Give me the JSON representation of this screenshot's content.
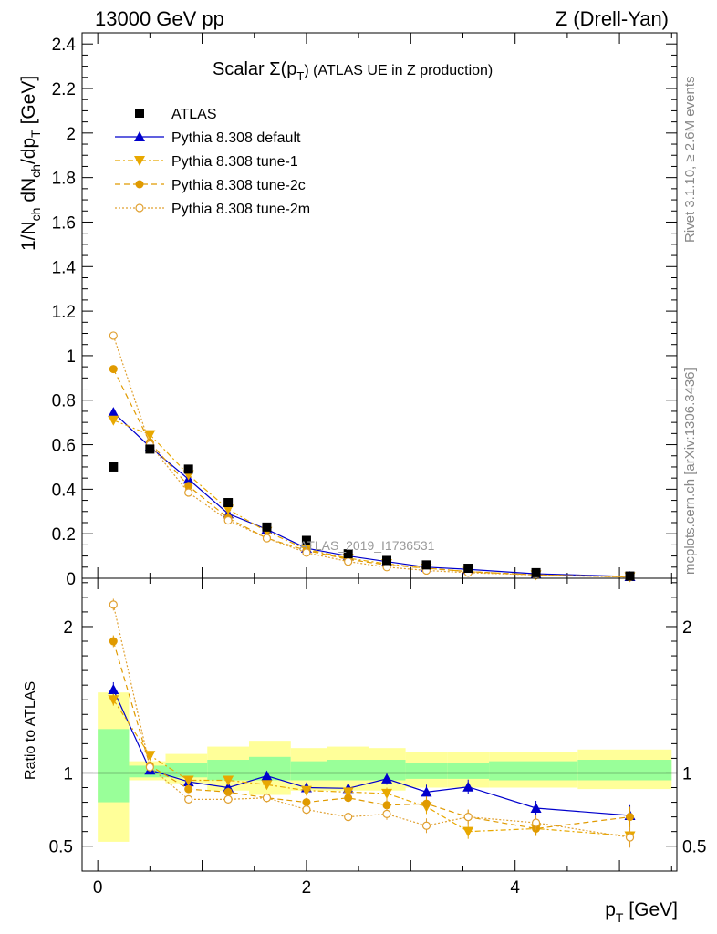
{
  "header": {
    "left": "13000 GeV pp",
    "right": "Z (Drell-Yan)"
  },
  "side_text": {
    "top": "Rivet 3.1.10, ≥ 2.6M events",
    "bottom": "mcplots.cern.ch [arXiv:1306.3436]"
  },
  "chart_data": {
    "type": "line",
    "title": "Scalar Σ(pT) (ATLAS UE in Z production)",
    "title_parts": {
      "prefix": "Scalar Σ(p",
      "sub": "T",
      "suffix": ") (ATLAS UE in Z production)"
    },
    "watermark": "ATLAS_2019_I1736531",
    "main": {
      "ylabel": "1/Nch dNch/dpT [GeV]",
      "ylabel_parts": [
        "1/N",
        "ch",
        " dN",
        "ch",
        "/dp",
        "T",
        " [GeV]"
      ],
      "ylim": [
        0,
        2.45
      ],
      "yticks": [
        0,
        0.2,
        0.4,
        0.6,
        0.8,
        1,
        1.2,
        1.4,
        1.6,
        1.8,
        2,
        2.2,
        2.4
      ],
      "ytick_labels": [
        "0",
        "0.2",
        "0.4",
        "0.6",
        "0.8",
        "1",
        "1.2",
        "1.4",
        "1.6",
        "1.8",
        "2",
        "2.2",
        "2.4"
      ]
    },
    "ratio": {
      "ylabel": "Ratio to ATLAS",
      "ylim": [
        0.33,
        2.33
      ],
      "yticks": [
        0.5,
        1,
        2
      ],
      "ytick_labels": [
        "0.5",
        "1",
        "2"
      ],
      "bands": [
        {
          "x0": 0.0,
          "x1": 0.3,
          "inner": [
            0.8,
            1.3
          ],
          "outer": [
            0.53,
            1.55
          ]
        },
        {
          "x0": 0.3,
          "x1": 0.65,
          "inner": [
            0.97,
            1.05
          ],
          "outer": [
            0.95,
            1.08
          ]
        },
        {
          "x0": 0.65,
          "x1": 1.05,
          "inner": [
            0.97,
            1.07
          ],
          "outer": [
            0.93,
            1.13
          ]
        },
        {
          "x0": 1.05,
          "x1": 1.45,
          "inner": [
            0.95,
            1.09
          ],
          "outer": [
            0.88,
            1.18
          ]
        },
        {
          "x0": 1.45,
          "x1": 1.85,
          "inner": [
            0.95,
            1.11
          ],
          "outer": [
            0.85,
            1.22
          ]
        },
        {
          "x0": 1.85,
          "x1": 2.2,
          "inner": [
            0.95,
            1.08
          ],
          "outer": [
            0.88,
            1.17
          ]
        },
        {
          "x0": 2.2,
          "x1": 2.6,
          "inner": [
            0.95,
            1.09
          ],
          "outer": [
            0.88,
            1.18
          ]
        },
        {
          "x0": 2.6,
          "x1": 2.95,
          "inner": [
            0.95,
            1.09
          ],
          "outer": [
            0.88,
            1.17
          ]
        },
        {
          "x0": 2.95,
          "x1": 3.35,
          "inner": [
            0.96,
            1.07
          ],
          "outer": [
            0.9,
            1.14
          ]
        },
        {
          "x0": 3.35,
          "x1": 3.75,
          "inner": [
            0.96,
            1.07
          ],
          "outer": [
            0.9,
            1.14
          ]
        },
        {
          "x0": 3.75,
          "x1": 4.6,
          "inner": [
            0.95,
            1.08
          ],
          "outer": [
            0.9,
            1.14
          ]
        },
        {
          "x0": 4.6,
          "x1": 5.5,
          "inner": [
            0.95,
            1.09
          ],
          "outer": [
            0.89,
            1.16
          ]
        }
      ]
    },
    "xlabel": "pT [GeV]",
    "xlabel_parts": [
      "p",
      "T",
      " [GeV]"
    ],
    "xlim": [
      -0.15,
      5.55
    ],
    "xticks": [
      0,
      2,
      4
    ],
    "xtick_labels": [
      "0",
      "2",
      "4"
    ],
    "x": [
      0.15,
      0.5,
      0.87,
      1.25,
      1.62,
      2.0,
      2.4,
      2.77,
      3.15,
      3.55,
      4.2,
      5.1
    ],
    "data": {
      "name": "ATLAS",
      "values": [
        0.5,
        0.58,
        0.49,
        0.34,
        0.23,
        0.17,
        0.11,
        0.08,
        0.06,
        0.045,
        0.025,
        0.01
      ]
    },
    "series": [
      {
        "name": "Pythia 8.308 default",
        "color": "#0000cc",
        "style": "solid",
        "marker": "triangle-up",
        "values": [
          0.745,
          0.59,
          0.445,
          0.29,
          0.22,
          0.135,
          0.1,
          0.075,
          0.05,
          0.04,
          0.02,
          0.008
        ],
        "ratio": [
          1.57,
          1.02,
          0.94,
          0.9,
          0.98,
          0.9,
          0.895,
          0.96,
          0.87,
          0.905,
          0.76,
          0.71
        ],
        "ratio_err": [
          0.05,
          0.03,
          0.02,
          0.03,
          0.03,
          0.03,
          0.03,
          0.04,
          0.05,
          0.05,
          0.05,
          0.07
        ]
      },
      {
        "name": "Pythia 8.308 tune-1",
        "color": "#e8a800",
        "style": "dashdot",
        "marker": "triangle-down",
        "values": [
          0.71,
          0.645,
          0.465,
          0.31,
          0.21,
          0.13,
          0.09,
          0.065,
          0.045,
          0.03,
          0.015,
          0.006
        ],
        "ratio": [
          1.5,
          1.12,
          0.95,
          0.95,
          0.92,
          0.88,
          0.87,
          0.86,
          0.77,
          0.6,
          0.62,
          0.57
        ],
        "ratio_err": [
          0.04,
          0.03,
          0.02,
          0.03,
          0.03,
          0.03,
          0.03,
          0.04,
          0.05,
          0.05,
          0.05,
          0.07
        ]
      },
      {
        "name": "Pythia 8.308 tune-2c",
        "color": "#e09a00",
        "style": "dashed",
        "marker": "circle",
        "values": [
          0.94,
          0.61,
          0.415,
          0.27,
          0.18,
          0.125,
          0.085,
          0.06,
          0.045,
          0.03,
          0.015,
          0.007
        ],
        "ratio": [
          1.9,
          1.05,
          0.89,
          0.87,
          0.83,
          0.8,
          0.83,
          0.78,
          0.79,
          0.7,
          0.62,
          0.7
        ],
        "ratio_err": [
          0.04,
          0.03,
          0.02,
          0.03,
          0.03,
          0.03,
          0.03,
          0.04,
          0.05,
          0.05,
          0.05,
          0.07
        ]
      },
      {
        "name": "Pythia 8.308 tune-2m",
        "color": "#e0a030",
        "style": "dotted",
        "marker": "circle-open",
        "values": [
          1.09,
          0.6,
          0.385,
          0.26,
          0.18,
          0.115,
          0.075,
          0.05,
          0.035,
          0.025,
          0.015,
          0.005
        ],
        "ratio": [
          2.15,
          1.04,
          0.82,
          0.82,
          0.83,
          0.75,
          0.7,
          0.72,
          0.64,
          0.7,
          0.66,
          0.56
        ],
        "ratio_err": [
          0.04,
          0.03,
          0.02,
          0.03,
          0.03,
          0.03,
          0.03,
          0.04,
          0.05,
          0.05,
          0.05,
          0.07
        ]
      }
    ]
  },
  "colors": {
    "band_inner": "#99ff99",
    "band_outer": "#ffff99",
    "data": "#000000"
  }
}
